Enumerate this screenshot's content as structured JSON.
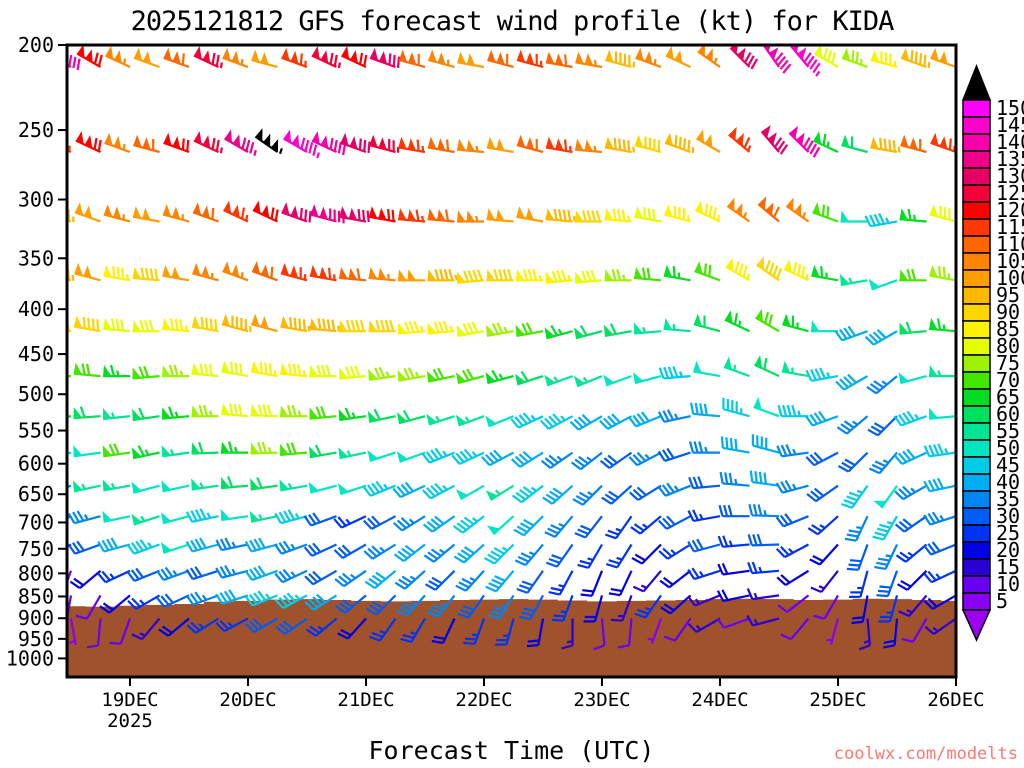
{
  "chart_data": {
    "type": "wind-barb-time-height",
    "title": "2025121812 GFS forecast wind profile (kt) for KIDA",
    "xlabel": "Forecast Time (UTC)",
    "watermark": {
      "text": "coolwx.com/modelts",
      "color": "#FA7A72"
    },
    "x_axis": {
      "tick_labels": [
        "19DEC",
        "20DEC",
        "21DEC",
        "22DEC",
        "23DEC",
        "24DEC",
        "25DEC",
        "26DEC"
      ],
      "year_label": "2025",
      "start_label": "18DEC12",
      "step_hours": 6,
      "time_steps": 31
    },
    "y_axis": {
      "tick_values": [
        200,
        250,
        300,
        350,
        400,
        450,
        500,
        550,
        600,
        650,
        700,
        750,
        800,
        850,
        900,
        950,
        1000
      ],
      "log_scale": true,
      "pressure_range": [
        200,
        1050
      ]
    },
    "palette": {
      "min": 5,
      "step": 5,
      "max": 150,
      "colors": [
        "#8A00F2",
        "#6A00F2",
        "#2A00D5",
        "#0000E6",
        "#0033F2",
        "#005CF2",
        "#0085F2",
        "#00ADF2",
        "#00CCE8",
        "#00E6C2",
        "#00E695",
        "#00E060",
        "#00DD22",
        "#44E600",
        "#9EF200",
        "#E6FF00",
        "#FFF200",
        "#FFD500",
        "#FFB800",
        "#FF9E00",
        "#FF8400",
        "#FF6600",
        "#FF3700",
        "#FF0000",
        "#F20039",
        "#E60066",
        "#EE0088",
        "#F500AA",
        "#FF00CC",
        "#FF00FF"
      ],
      "over_color": "#000000",
      "under_color": "#9E00F2"
    },
    "terrain": {
      "color": "#A0522D",
      "top_hpa": [
        872,
        873,
        871,
        869,
        867,
        862,
        860,
        857,
        856,
        858,
        860,
        861,
        860,
        858,
        857,
        856,
        857,
        859,
        861,
        860,
        859,
        858,
        856,
        855,
        856,
        858,
        857,
        855,
        856,
        858,
        860
      ]
    },
    "barbs": {
      "levels": [
        {
          "pressure_hpa": 200,
          "speeds_kt": [
            140,
            120,
            105,
            100,
            110,
            125,
            105,
            100,
            115,
            125,
            120,
            130,
            110,
            105,
            100,
            110,
            115,
            110,
            105,
            95,
            105,
            100,
            105,
            130,
            140,
            145,
            80,
            75,
            85,
            95,
            100
          ],
          "directions_deg": [
            295,
            300,
            295,
            290,
            290,
            295,
            290,
            285,
            290,
            295,
            295,
            290,
            285,
            285,
            280,
            285,
            285,
            280,
            280,
            285,
            290,
            295,
            305,
            315,
            325,
            320,
            300,
            290,
            285,
            290,
            290
          ]
        },
        {
          "pressure_hpa": 250,
          "speeds_kt": [
            115,
            120,
            105,
            110,
            120,
            125,
            135,
            155,
            145,
            140,
            130,
            125,
            115,
            110,
            105,
            100,
            110,
            115,
            105,
            95,
            90,
            95,
            100,
            115,
            130,
            140,
            65,
            60,
            95,
            110,
            115
          ],
          "directions_deg": [
            290,
            295,
            290,
            285,
            290,
            295,
            300,
            305,
            300,
            295,
            290,
            285,
            280,
            280,
            275,
            280,
            285,
            280,
            275,
            280,
            285,
            290,
            300,
            310,
            320,
            315,
            295,
            285,
            280,
            285,
            290
          ]
        },
        {
          "pressure_hpa": 300,
          "speeds_kt": [
            95,
            100,
            105,
            100,
            105,
            110,
            115,
            120,
            130,
            135,
            130,
            120,
            115,
            110,
            105,
            100,
            100,
            95,
            90,
            85,
            80,
            85,
            85,
            105,
            110,
            105,
            70,
            50,
            45,
            65,
            80
          ],
          "directions_deg": [
            285,
            290,
            285,
            280,
            285,
            290,
            295,
            295,
            290,
            285,
            280,
            280,
            275,
            275,
            270,
            275,
            280,
            275,
            270,
            275,
            280,
            285,
            295,
            305,
            310,
            305,
            290,
            270,
            260,
            275,
            285
          ]
        },
        {
          "pressure_hpa": 350,
          "speeds_kt": [
            95,
            100,
            85,
            90,
            100,
            105,
            105,
            110,
            115,
            115,
            110,
            105,
            100,
            95,
            90,
            90,
            85,
            85,
            80,
            75,
            70,
            65,
            70,
            85,
            90,
            85,
            65,
            55,
            50,
            70,
            75
          ],
          "directions_deg": [
            280,
            285,
            280,
            275,
            280,
            285,
            290,
            290,
            285,
            280,
            275,
            275,
            270,
            270,
            265,
            270,
            270,
            265,
            265,
            270,
            275,
            280,
            290,
            300,
            305,
            295,
            280,
            260,
            250,
            270,
            280
          ]
        },
        {
          "pressure_hpa": 400,
          "speeds_kt": [
            90,
            90,
            80,
            80,
            85,
            90,
            95,
            100,
            95,
            95,
            90,
            90,
            85,
            85,
            80,
            75,
            70,
            65,
            60,
            60,
            55,
            55,
            60,
            65,
            70,
            65,
            50,
            40,
            40,
            60,
            65
          ],
          "directions_deg": [
            275,
            280,
            275,
            270,
            275,
            280,
            285,
            285,
            280,
            275,
            270,
            270,
            265,
            265,
            260,
            260,
            260,
            255,
            255,
            260,
            265,
            275,
            285,
            295,
            300,
            285,
            270,
            250,
            240,
            265,
            275
          ]
        },
        {
          "pressure_hpa": 450,
          "speeds_kt": [
            70,
            70,
            65,
            70,
            75,
            80,
            80,
            85,
            85,
            80,
            80,
            75,
            75,
            70,
            70,
            65,
            60,
            55,
            55,
            50,
            50,
            45,
            50,
            55,
            60,
            55,
            45,
            40,
            35,
            50,
            55
          ],
          "directions_deg": [
            270,
            275,
            270,
            265,
            270,
            275,
            280,
            280,
            275,
            270,
            265,
            262,
            260,
            258,
            255,
            255,
            252,
            250,
            248,
            250,
            255,
            265,
            280,
            290,
            295,
            280,
            260,
            240,
            230,
            255,
            270
          ]
        },
        {
          "pressure_hpa": 500,
          "speeds_kt": [
            65,
            60,
            55,
            60,
            65,
            75,
            80,
            80,
            75,
            70,
            65,
            60,
            60,
            55,
            55,
            50,
            45,
            45,
            40,
            40,
            40,
            35,
            40,
            45,
            50,
            45,
            40,
            35,
            30,
            45,
            50
          ],
          "directions_deg": [
            262,
            266,
            264,
            262,
            265,
            270,
            275,
            272,
            270,
            265,
            262,
            258,
            255,
            252,
            250,
            248,
            245,
            242,
            240,
            242,
            248,
            258,
            275,
            285,
            290,
            270,
            250,
            230,
            225,
            250,
            265
          ]
        },
        {
          "pressure_hpa": 550,
          "speeds_kt": [
            45,
            50,
            70,
            65,
            55,
            60,
            65,
            75,
            70,
            60,
            55,
            50,
            50,
            45,
            45,
            40,
            40,
            35,
            35,
            30,
            35,
            30,
            35,
            40,
            40,
            35,
            30,
            30,
            35,
            40,
            45
          ],
          "directions_deg": [
            256,
            262,
            262,
            258,
            262,
            268,
            270,
            268,
            265,
            260,
            258,
            252,
            250,
            248,
            245,
            242,
            238,
            235,
            232,
            235,
            242,
            252,
            270,
            280,
            285,
            262,
            242,
            225,
            220,
            245,
            262
          ]
        },
        {
          "pressure_hpa": 600,
          "speeds_kt": [
            35,
            55,
            55,
            50,
            50,
            55,
            60,
            60,
            55,
            50,
            50,
            45,
            40,
            45,
            50,
            55,
            45,
            40,
            35,
            30,
            30,
            35,
            30,
            35,
            40,
            35,
            30,
            45,
            50,
            35,
            40
          ],
          "directions_deg": [
            250,
            258,
            260,
            255,
            258,
            262,
            265,
            262,
            260,
            255,
            252,
            248,
            245,
            242,
            240,
            238,
            232,
            228,
            225,
            228,
            238,
            248,
            265,
            275,
            278,
            255,
            235,
            215,
            215,
            240,
            258
          ]
        },
        {
          "pressure_hpa": 650,
          "speeds_kt": [
            30,
            35,
            50,
            55,
            50,
            45,
            50,
            55,
            45,
            30,
            25,
            30,
            35,
            40,
            45,
            50,
            40,
            35,
            30,
            25,
            25,
            30,
            25,
            30,
            35,
            30,
            25,
            35,
            45,
            30,
            35
          ],
          "directions_deg": [
            245,
            255,
            258,
            252,
            255,
            258,
            262,
            258,
            255,
            250,
            245,
            242,
            238,
            235,
            232,
            228,
            225,
            220,
            218,
            215,
            230,
            242,
            260,
            270,
            272,
            248,
            228,
            205,
            210,
            235,
            252
          ]
        },
        {
          "pressure_hpa": 700,
          "speeds_kt": [
            25,
            30,
            40,
            45,
            50,
            40,
            35,
            40,
            35,
            30,
            30,
            35,
            40,
            35,
            40,
            45,
            35,
            30,
            25,
            25,
            20,
            25,
            30,
            25,
            30,
            25,
            20,
            30,
            35,
            25,
            30
          ],
          "directions_deg": [
            240,
            250,
            255,
            250,
            252,
            255,
            258,
            255,
            250,
            245,
            240,
            238,
            232,
            230,
            228,
            225,
            220,
            215,
            210,
            212,
            225,
            238,
            255,
            265,
            268,
            242,
            222,
            200,
            205,
            230,
            248
          ]
        },
        {
          "pressure_hpa": 750,
          "speeds_kt": [
            10,
            20,
            25,
            30,
            35,
            30,
            35,
            40,
            35,
            30,
            35,
            40,
            35,
            30,
            35,
            40,
            30,
            25,
            20,
            20,
            15,
            20,
            25,
            20,
            25,
            20,
            15,
            25,
            30,
            20,
            25
          ],
          "directions_deg": [
            200,
            230,
            245,
            248,
            250,
            252,
            255,
            250,
            245,
            240,
            235,
            230,
            228,
            225,
            222,
            220,
            215,
            208,
            202,
            205,
            220,
            232,
            252,
            262,
            265,
            238,
            218,
            195,
            200,
            225,
            245
          ]
        },
        {
          "pressure_hpa": 800,
          "speeds_kt": [
            10,
            10,
            20,
            25,
            30,
            35,
            40,
            45,
            45,
            40,
            30,
            30,
            35,
            35,
            30,
            35,
            30,
            25,
            20,
            15,
            25,
            20,
            15,
            20,
            15,
            10,
            10,
            20,
            25,
            15,
            20
          ],
          "directions_deg": [
            190,
            210,
            230,
            240,
            245,
            250,
            252,
            248,
            242,
            238,
            230,
            225,
            222,
            218,
            215,
            212,
            208,
            200,
            195,
            200,
            215,
            228,
            248,
            258,
            262,
            232,
            210,
            190,
            195,
            220,
            240
          ]
        },
        {
          "pressure_hpa": 850,
          "speeds_kt": [
            5,
            10,
            10,
            15,
            20,
            25,
            25,
            30,
            30,
            25,
            20,
            25,
            25,
            20,
            25,
            25,
            20,
            15,
            10,
            10,
            5,
            10,
            15,
            10,
            15,
            10,
            5,
            15,
            20,
            10,
            15
          ],
          "directions_deg": [
            170,
            185,
            200,
            220,
            230,
            238,
            242,
            240,
            235,
            230,
            222,
            215,
            210,
            205,
            200,
            195,
            190,
            180,
            175,
            185,
            200,
            215,
            240,
            250,
            255,
            220,
            195,
            175,
            185,
            210,
            235
          ]
        }
      ]
    }
  }
}
